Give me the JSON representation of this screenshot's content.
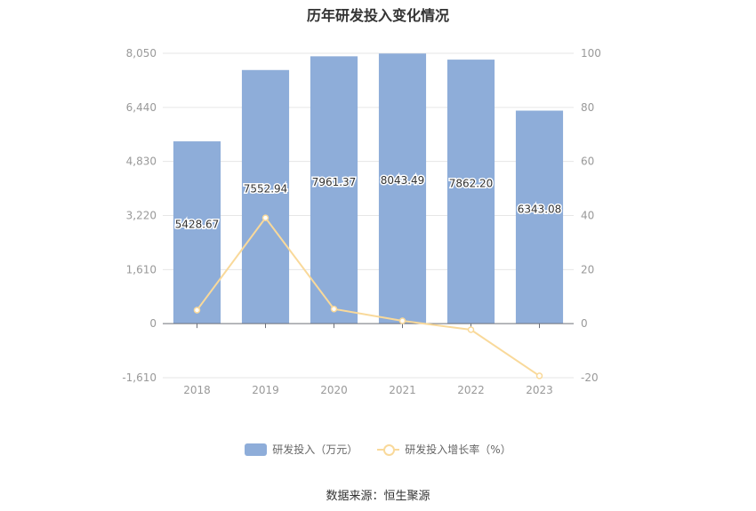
{
  "title": "历年研发投入变化情况",
  "source": "数据来源：恒生聚源",
  "legend": {
    "bar_label": "研发投入（万元）",
    "line_label": "研发投入增长率（%）"
  },
  "colors": {
    "bar": "#8eadd9",
    "line": "#f9d99a",
    "axis_text": "#999999",
    "grid": "#e6e6e6"
  },
  "chart_data": {
    "type": "bar",
    "categories": [
      "2018",
      "2019",
      "2020",
      "2021",
      "2022",
      "2023"
    ],
    "series": [
      {
        "name": "研发投入（万元）",
        "type": "bar",
        "axis": "left",
        "values": [
          5428.67,
          7552.94,
          7961.37,
          8043.49,
          7862.2,
          6343.08
        ],
        "labels": [
          "5428.67",
          "7552.94",
          "7961.37",
          "8043.49",
          "7862.20",
          "6343.08"
        ]
      },
      {
        "name": "研发投入增长率（%）",
        "type": "line",
        "axis": "right",
        "values": [
          5.0,
          39.13,
          5.41,
          1.03,
          -2.25,
          -19.32
        ]
      }
    ],
    "left_axis": {
      "ylim": [
        -1610,
        8050
      ],
      "ticks": [
        -1610,
        0,
        1610,
        3220,
        4830,
        6440,
        8050
      ],
      "tick_labels": [
        "-1,610",
        "0",
        "1,610",
        "3,220",
        "4,830",
        "6,440",
        "8,050"
      ]
    },
    "right_axis": {
      "ylim": [
        -20,
        100
      ],
      "ticks": [
        -20,
        0,
        20,
        40,
        60,
        80,
        100
      ],
      "tick_labels": [
        "-20",
        "0",
        "20",
        "40",
        "60",
        "80",
        "100"
      ]
    },
    "grid": true,
    "legend_position": "bottom"
  }
}
